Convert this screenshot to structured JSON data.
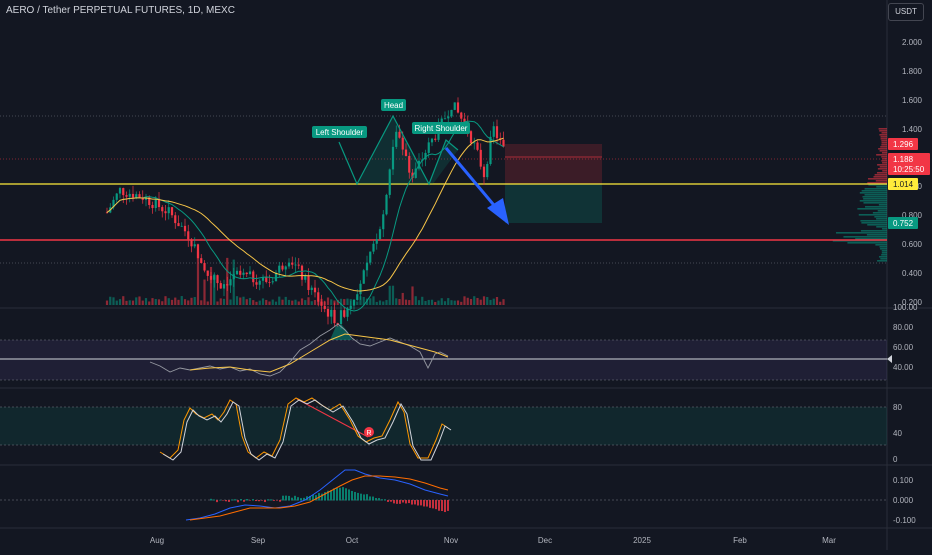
{
  "header": {
    "title": "AERO / Tether PERPETUAL FUTURES, 1D, MEXC",
    "currency_button": "USDT"
  },
  "price_axis": {
    "ticks": [
      "2.000",
      "1.800",
      "1.600",
      "1.400",
      "1.200",
      "1.000",
      "0.800",
      "0.600",
      "0.400",
      "0.200"
    ],
    "labels": {
      "stop": "1.296",
      "last_price": "1.188",
      "countdown": "10:25:50",
      "neckline": "1.014",
      "target": "0.752"
    },
    "colors": {
      "stop": "#f23645",
      "last_price": "#f23645",
      "neckline": "#ffeb3b",
      "target": "#089981"
    }
  },
  "annotations": {
    "left_shoulder": "Left Shoulder",
    "head": "Head",
    "right_shoulder": "Right Shoulder",
    "color": "#089981"
  },
  "rsi_axis": {
    "ticks": [
      "100.00",
      "80.00",
      "60.00",
      "40.00"
    ]
  },
  "stoch_axis": {
    "ticks": [
      "80",
      "40",
      "0"
    ],
    "signal_label": "R"
  },
  "macd_axis": {
    "ticks": [
      "0.100",
      "0.000",
      "-0.100"
    ]
  },
  "time_axis": {
    "ticks": [
      "Aug",
      "Sep",
      "Oct",
      "Nov",
      "Dec",
      "2025",
      "Feb",
      "Mar"
    ]
  },
  "chart_data": {
    "type": "candlestick",
    "symbol": "AERO / Tether PERPETUAL FUTURES",
    "interval": "1D",
    "exchange": "MEXC",
    "y_scale": "log",
    "last_price": 1.188,
    "levels": {
      "neckline": 1.014,
      "support": 0.64,
      "short_stop": 1.296,
      "short_target": 0.752
    },
    "pattern": "head-and-shoulders",
    "price_path": [
      {
        "date": "2024-07-01",
        "close": 0.88
      },
      {
        "date": "2024-07-05",
        "close": 0.98
      },
      {
        "date": "2024-07-12",
        "close": 0.95
      },
      {
        "date": "2024-07-20",
        "close": 0.88
      },
      {
        "date": "2024-07-26",
        "close": 0.79
      },
      {
        "date": "2024-08-01",
        "close": 0.66
      },
      {
        "date": "2024-08-05",
        "close": 0.62
      },
      {
        "date": "2024-08-10",
        "close": 0.65
      },
      {
        "date": "2024-08-20",
        "close": 0.63
      },
      {
        "date": "2024-08-26",
        "close": 0.71
      },
      {
        "date": "2024-08-31",
        "close": 0.63
      },
      {
        "date": "2024-09-06",
        "close": 0.55
      },
      {
        "date": "2024-09-10",
        "close": 0.52
      },
      {
        "date": "2024-09-14",
        "close": 0.57
      },
      {
        "date": "2024-09-19",
        "close": 0.67
      },
      {
        "date": "2024-09-24",
        "close": 0.87
      },
      {
        "date": "2024-09-28",
        "close": 1.32
      },
      {
        "date": "2024-10-01",
        "close": 1.16
      },
      {
        "date": "2024-10-03",
        "close": 1.04
      },
      {
        "date": "2024-10-07",
        "close": 1.18
      },
      {
        "date": "2024-10-12",
        "close": 1.35
      },
      {
        "date": "2024-10-15",
        "close": 1.49
      },
      {
        "date": "2024-10-20",
        "close": 1.32
      },
      {
        "date": "2024-10-25",
        "close": 1.06
      },
      {
        "date": "2024-10-28",
        "close": 1.32
      },
      {
        "date": "2024-10-31",
        "close": 1.19
      }
    ],
    "volume_profile": "visible"
  }
}
